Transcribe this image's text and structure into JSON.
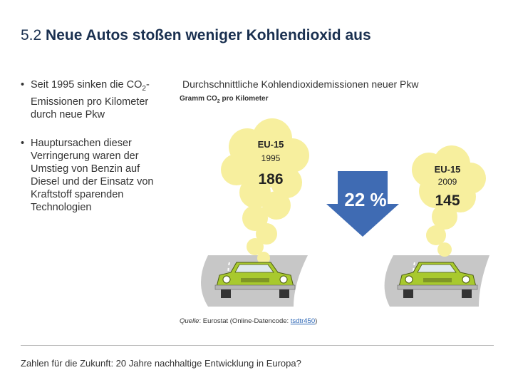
{
  "slide": {
    "number": "5.2",
    "title": "Neue Autos stoßen weniger Kohlendioxid aus"
  },
  "bullets": [
    {
      "pre": "Seit 1995 sinken die CO",
      "sub": "2",
      "post": "-Emissionen pro Kilometer durch neue Pkw"
    },
    {
      "text": "Hauptursachen dieser Verringerung waren der Umstieg von Benzin auf Diesel und der Einsatz von Kraftstoff sparenden Technologien"
    }
  ],
  "chart": {
    "title": "Durchschnittliche Kohlendioxidemissionen neuer Pkw",
    "unit_pre": "Gramm CO",
    "unit_sub": "2",
    "unit_post": " pro Kilometer",
    "reduction_label": "22 %"
  },
  "chart_data": {
    "type": "bar",
    "title": "Durchschnittliche Kohlendioxidemissionen neuer Pkw",
    "ylabel": "Gramm CO2 pro Kilometer",
    "series": [
      {
        "name": "EU-15",
        "values": [
          186,
          145
        ]
      }
    ],
    "categories": [
      "1995",
      "2009"
    ],
    "region": "EU-15",
    "annotation": "22 %"
  },
  "source": {
    "label": "Quelle",
    "text": ": Eurostat (Online-Datencode: ",
    "code": "tsdtr450",
    "close": ")"
  },
  "footer": "Zahlen für die Zukunft: 20 Jahre nachhaltige Entwicklung in Europa?",
  "colors": {
    "title": "#1a3050",
    "smoke": "#f7ef9e",
    "car": "#a8c92e",
    "arrow": "#3f6bb3",
    "road": "#c7c7c7"
  }
}
